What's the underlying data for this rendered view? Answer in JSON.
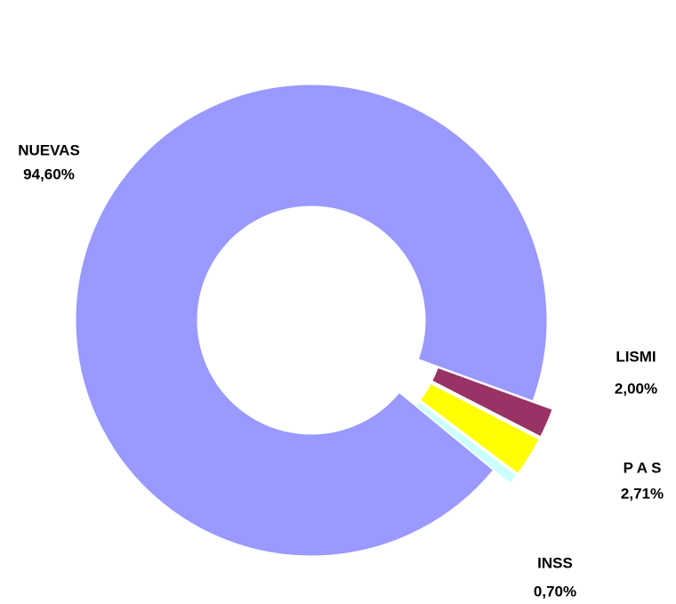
{
  "chart_data": {
    "type": "donut",
    "categories": [
      "LISMI",
      "P A S",
      "INSS",
      "NUEVAS"
    ],
    "values": [
      2.0,
      2.71,
      0.7,
      94.6
    ],
    "value_labels": [
      "2,00%",
      "2,71%",
      "0,70%",
      "94,60%"
    ],
    "colors": [
      "#993366",
      "#ffff00",
      "#ccffff",
      "#9999ff"
    ],
    "exploded": [
      true,
      true,
      true,
      false
    ]
  }
}
